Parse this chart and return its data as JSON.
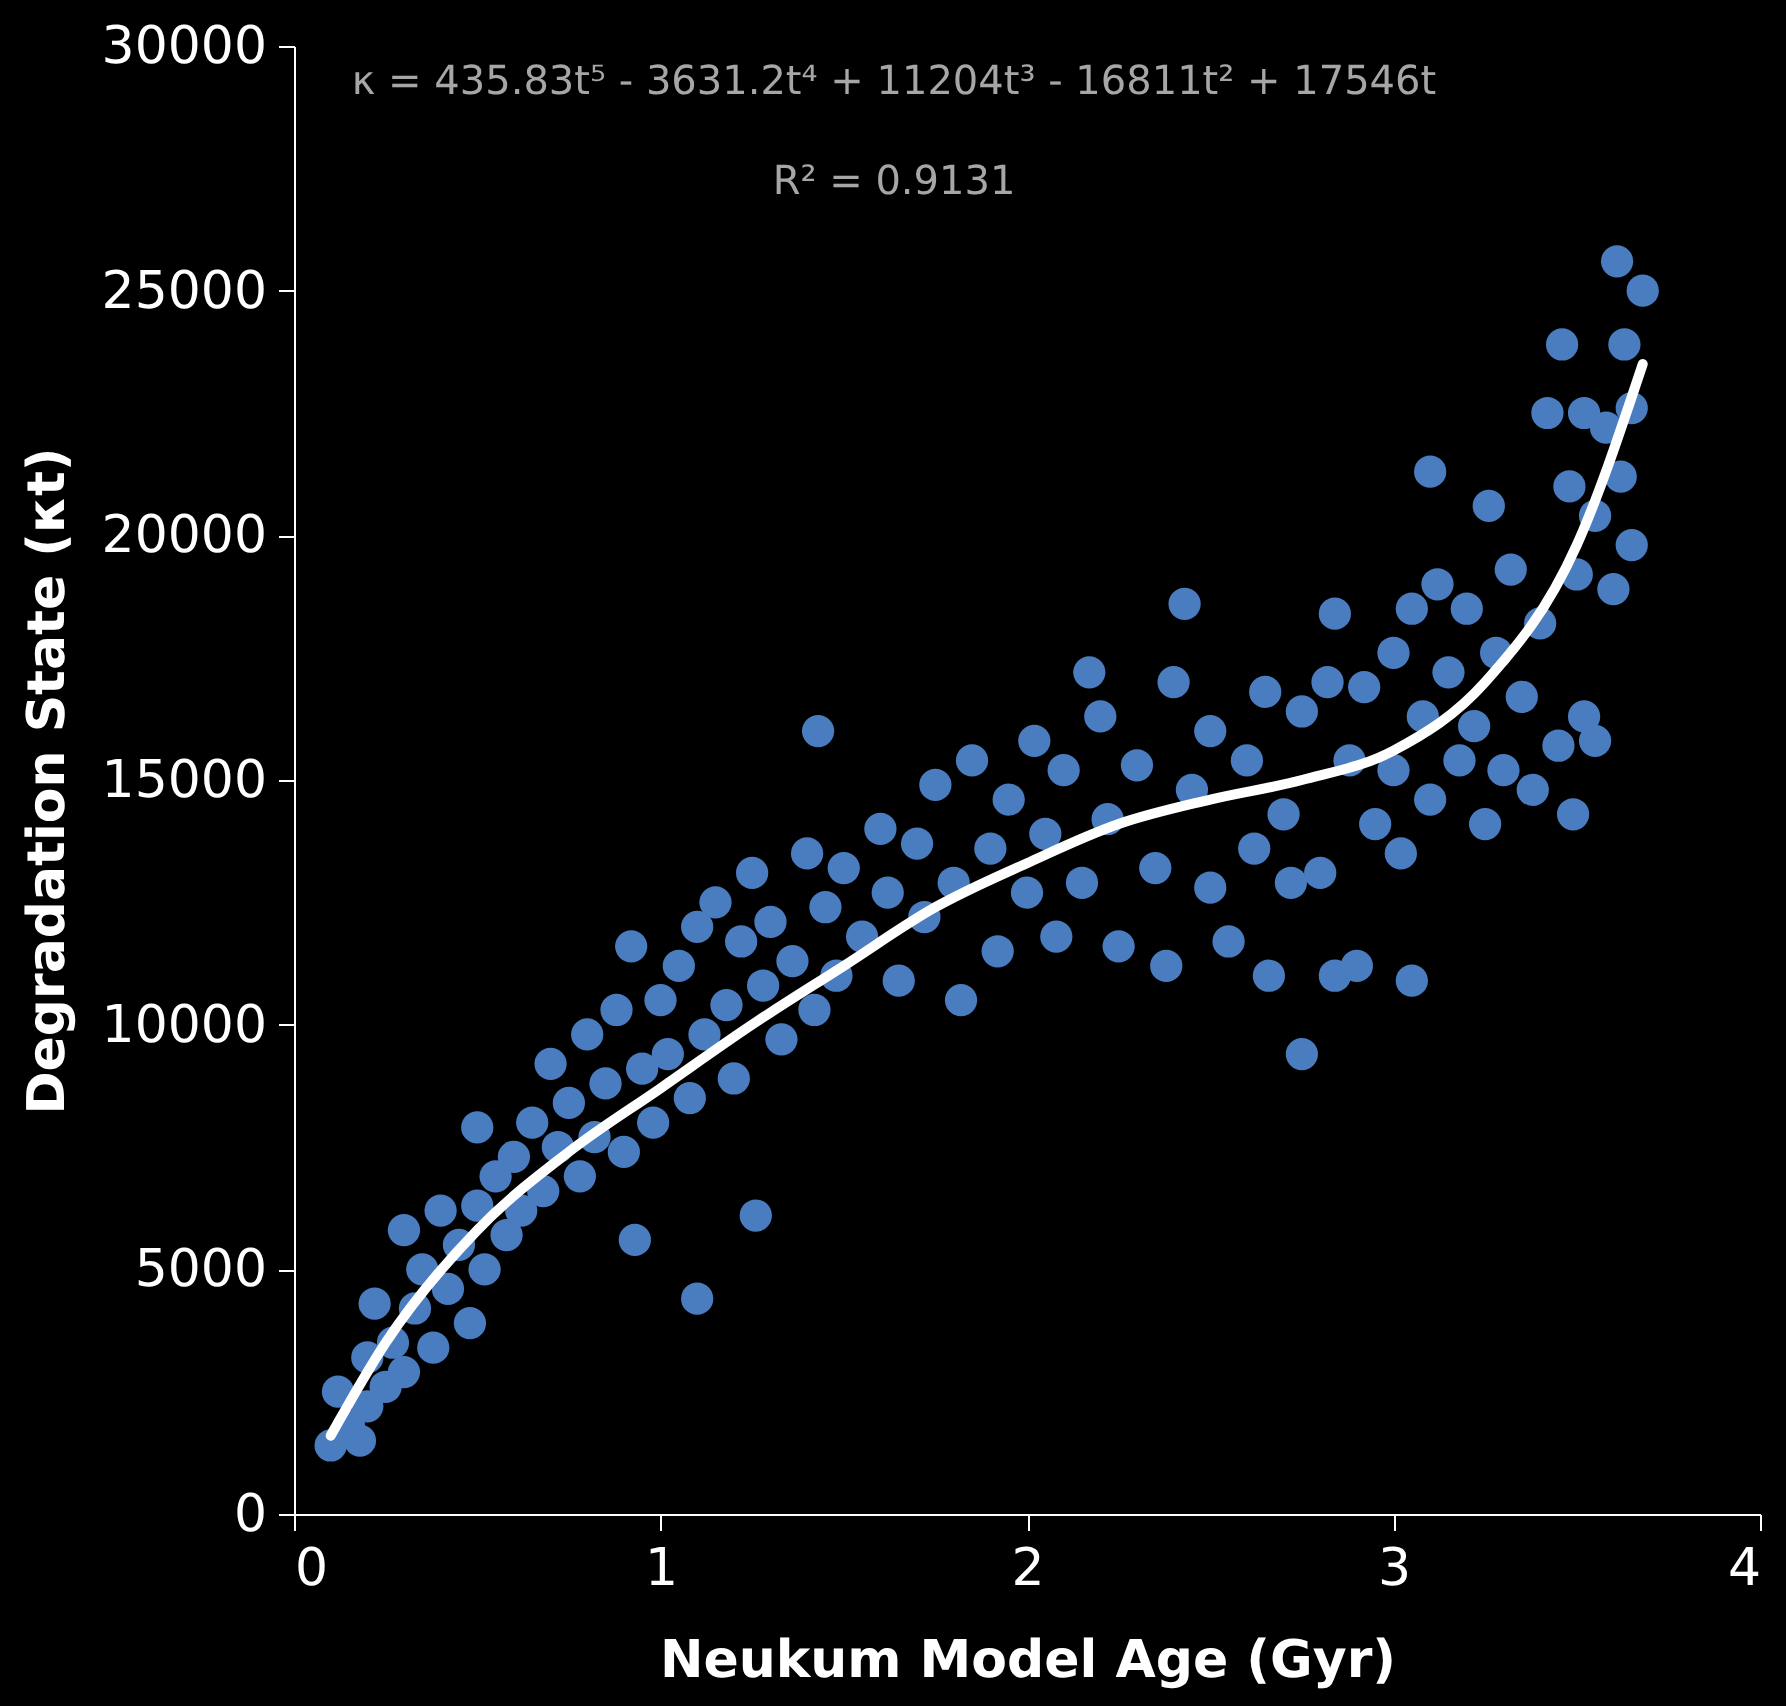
{
  "chart_data": {
    "type": "scatter",
    "xlabel": "Neukum Model Age (Gyr)",
    "ylabel": "Degradation State (κt)",
    "annotations": [
      "κ = 435.83t⁵ - 3631.2t⁴ + 11204t³ - 16811t² + 17546t",
      "R² = 0.9131"
    ],
    "xlim": [
      0,
      4
    ],
    "xticks": [
      0,
      1,
      2,
      3,
      4
    ],
    "ylim": [
      0,
      30000
    ],
    "yticks": [
      0,
      5000,
      10000,
      15000,
      20000,
      25000,
      30000
    ],
    "grid": false,
    "series": [
      {
        "color": "#4a7cc0",
        "x": [
          0.1,
          0.12,
          0.15,
          0.18,
          0.2,
          0.2,
          0.22,
          0.25,
          0.27,
          0.3,
          0.3,
          0.33,
          0.35,
          0.38,
          0.4,
          0.42,
          0.45,
          0.48,
          0.5,
          0.5,
          0.52,
          0.55,
          0.58,
          0.6,
          0.62,
          0.65,
          0.68,
          0.7,
          0.72,
          0.75,
          0.78,
          0.8,
          0.82,
          0.85,
          0.88,
          0.9,
          0.92,
          0.93,
          0.95,
          0.98,
          1.0,
          1.02,
          1.05,
          1.08,
          1.1,
          1.1,
          1.12,
          1.15,
          1.18,
          1.2,
          1.22,
          1.25,
          1.26,
          1.28,
          1.3,
          1.33,
          1.36,
          1.4,
          1.42,
          1.43,
          1.45,
          1.48,
          1.5,
          1.55,
          1.6,
          1.62,
          1.65,
          1.7,
          1.72,
          1.75,
          1.8,
          1.82,
          1.85,
          1.9,
          1.92,
          1.95,
          2.0,
          2.02,
          2.05,
          2.08,
          2.1,
          2.15,
          2.17,
          2.2,
          2.22,
          2.25,
          2.3,
          2.35,
          2.38,
          2.4,
          2.43,
          2.45,
          2.5,
          2.5,
          2.55,
          2.6,
          2.62,
          2.65,
          2.66,
          2.7,
          2.72,
          2.75,
          2.75,
          2.8,
          2.82,
          2.84,
          2.84,
          2.88,
          2.9,
          2.92,
          2.95,
          3.0,
          3.0,
          3.02,
          3.05,
          3.05,
          3.08,
          3.1,
          3.1,
          3.12,
          3.15,
          3.18,
          3.2,
          3.22,
          3.25,
          3.26,
          3.28,
          3.3,
          3.32,
          3.35,
          3.38,
          3.4,
          3.42,
          3.45,
          3.46,
          3.48,
          3.49,
          3.5,
          3.52,
          3.52,
          3.55,
          3.55,
          3.58,
          3.6,
          3.61,
          3.62,
          3.63,
          3.65,
          3.65,
          3.68
        ],
        "values": [
          1400,
          2500,
          1800,
          1500,
          2200,
          3200,
          4300,
          2600,
          3500,
          5800,
          2900,
          4200,
          5000,
          3400,
          6200,
          4600,
          5500,
          3900,
          7900,
          6300,
          5000,
          6900,
          5700,
          7300,
          6200,
          8000,
          6600,
          9200,
          7500,
          8400,
          6900,
          9800,
          7700,
          8800,
          10300,
          7400,
          11600,
          5600,
          9100,
          8000,
          10500,
          9400,
          11200,
          8500,
          12000,
          4400,
          9800,
          12500,
          10400,
          8900,
          11700,
          13100,
          6100,
          10800,
          12100,
          9700,
          11300,
          13500,
          10300,
          16000,
          12400,
          11000,
          13200,
          11800,
          14000,
          12700,
          10900,
          13700,
          12200,
          14900,
          12900,
          10500,
          15400,
          13600,
          11500,
          14600,
          12700,
          15800,
          13900,
          11800,
          15200,
          12900,
          17200,
          16300,
          14200,
          11600,
          15300,
          13200,
          11200,
          17000,
          18600,
          14800,
          12800,
          16000,
          11700,
          15400,
          13600,
          16800,
          11000,
          14300,
          12900,
          16400,
          9400,
          13100,
          17000,
          18400,
          11000,
          15400,
          11200,
          16900,
          14100,
          17600,
          15200,
          13500,
          18500,
          10900,
          16300,
          14600,
          21300,
          19000,
          17200,
          15400,
          18500,
          16100,
          14100,
          20600,
          17600,
          15200,
          19300,
          16700,
          14800,
          18200,
          22500,
          15700,
          23900,
          21000,
          14300,
          19200,
          16300,
          22500,
          15800,
          20400,
          22200,
          18900,
          25600,
          21200,
          23900,
          19800,
          22600,
          25000
        ]
      },
      {
        "type": "line",
        "color": "#ffffff",
        "x": [
          0.1,
          0.25,
          0.5,
          0.75,
          1,
          1.25,
          1.5,
          1.75,
          2,
          2.25,
          2.5,
          2.75,
          3,
          3.25,
          3.5,
          3.68
        ],
        "values": [
          1600,
          3500,
          5800,
          7400,
          8700,
          10000,
          11200,
          12400,
          13300,
          14100,
          14600,
          15000,
          15600,
          17000,
          19800,
          23500
        ]
      }
    ]
  }
}
